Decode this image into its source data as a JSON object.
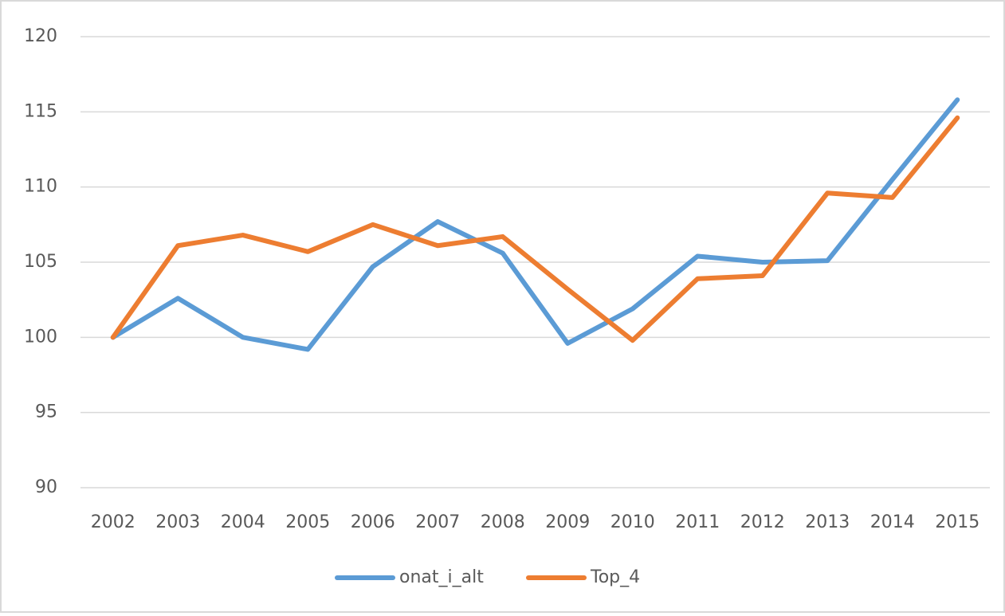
{
  "chart_data": {
    "type": "line",
    "categories": [
      "2002",
      "2003",
      "2004",
      "2005",
      "2006",
      "2007",
      "2008",
      "2009",
      "2010",
      "2011",
      "2012",
      "2013",
      "2014",
      "2015"
    ],
    "series": [
      {
        "name": "onat_i_alt",
        "color": "#5b9bd5",
        "values": [
          100,
          102.6,
          100,
          99.2,
          104.7,
          107.7,
          105.6,
          99.6,
          101.9,
          105.4,
          105.0,
          105.1,
          110.5,
          115.8
        ]
      },
      {
        "name": "Top_4",
        "color": "#ed7d31",
        "values": [
          100,
          106.1,
          106.8,
          105.7,
          107.5,
          106.1,
          106.7,
          103.2,
          99.8,
          103.9,
          104.1,
          109.6,
          109.3,
          114.6
        ]
      }
    ],
    "ylim": [
      90,
      120
    ],
    "yticks": [
      90,
      95,
      100,
      105,
      110,
      115,
      120
    ],
    "grid": true,
    "legend": "bottom"
  }
}
